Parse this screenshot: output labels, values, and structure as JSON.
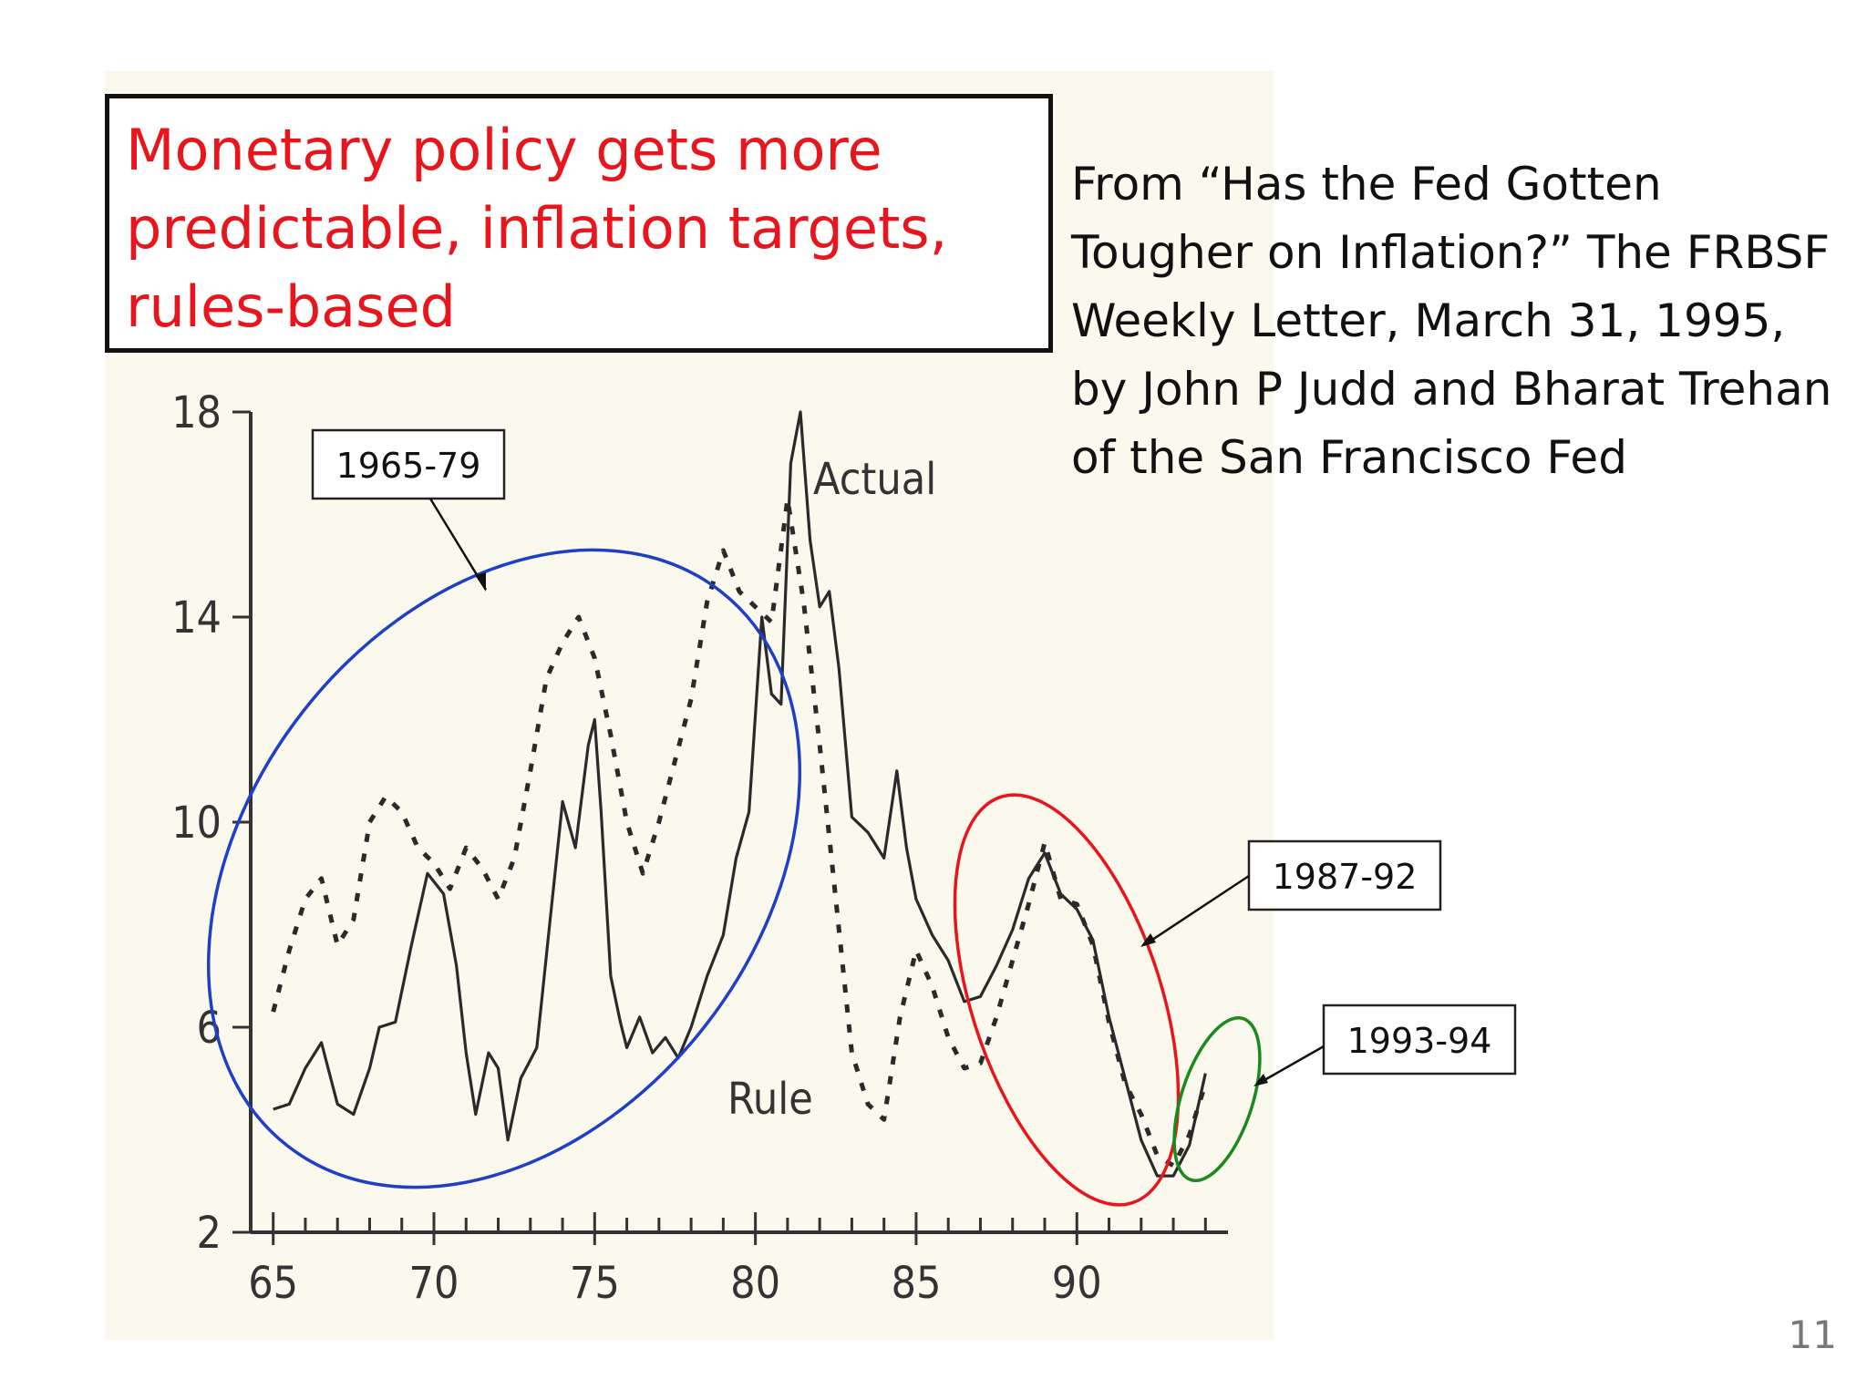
{
  "slide": {
    "title": "Monetary policy gets more predictable, inflation targets, rules-based",
    "source": "From “Has the Fed Gotten Tougher on Inflation?” The FRBSF Weekly  Letter, March 31, 1995, by John P Judd and Bharat Trehan  of the San Francisco Fed",
    "page_number": "11"
  },
  "colors": {
    "title": "#e8161c",
    "ellipse_1965_79": "#1f3fc4",
    "ellipse_1987_92": "#e8161c",
    "ellipse_1993_94": "#1a8a1a",
    "actual_line": "#2a2a2a",
    "rule_line": "#2a2a2a"
  },
  "chart_data": {
    "type": "line",
    "title": "",
    "xlabel": "",
    "ylabel": "",
    "xlim": [
      64.3,
      94.7
    ],
    "ylim": [
      2,
      18
    ],
    "yticks": [
      2,
      6,
      10,
      14,
      18
    ],
    "ytick_labels": [
      "2",
      "6",
      "10",
      "14",
      "18"
    ],
    "xticks": [
      65,
      70,
      75,
      80,
      85,
      90
    ],
    "xtick_labels": [
      "65",
      "70",
      "75",
      "80",
      "85",
      "90"
    ],
    "series_labels": {
      "actual": "Actual",
      "rule": "Rule"
    },
    "series": [
      {
        "name": "Actual",
        "style": "solid",
        "points": [
          [
            65.0,
            4.4
          ],
          [
            65.5,
            4.5
          ],
          [
            66.0,
            5.2
          ],
          [
            66.5,
            5.7
          ],
          [
            67.0,
            4.5
          ],
          [
            67.5,
            4.3
          ],
          [
            68.0,
            5.2
          ],
          [
            68.3,
            6.0
          ],
          [
            68.8,
            6.1
          ],
          [
            69.3,
            7.6
          ],
          [
            69.8,
            9.0
          ],
          [
            70.3,
            8.6
          ],
          [
            70.7,
            7.2
          ],
          [
            71.0,
            5.5
          ],
          [
            71.3,
            4.3
          ],
          [
            71.7,
            5.5
          ],
          [
            72.0,
            5.2
          ],
          [
            72.3,
            3.8
          ],
          [
            72.7,
            5.0
          ],
          [
            73.2,
            5.6
          ],
          [
            73.6,
            8.0
          ],
          [
            74.0,
            10.4
          ],
          [
            74.4,
            9.5
          ],
          [
            74.8,
            11.5
          ],
          [
            75.0,
            12.0
          ],
          [
            75.2,
            10.2
          ],
          [
            75.5,
            7.0
          ],
          [
            75.8,
            6.1
          ],
          [
            76.0,
            5.6
          ],
          [
            76.4,
            6.2
          ],
          [
            76.8,
            5.5
          ],
          [
            77.2,
            5.8
          ],
          [
            77.6,
            5.4
          ],
          [
            78.0,
            6.0
          ],
          [
            78.5,
            7.0
          ],
          [
            79.0,
            7.8
          ],
          [
            79.4,
            9.3
          ],
          [
            79.8,
            10.2
          ],
          [
            80.2,
            14.0
          ],
          [
            80.5,
            12.5
          ],
          [
            80.8,
            12.3
          ],
          [
            81.1,
            17.0
          ],
          [
            81.4,
            18.0
          ],
          [
            81.7,
            15.5
          ],
          [
            82.0,
            14.2
          ],
          [
            82.3,
            14.5
          ],
          [
            82.6,
            13.0
          ],
          [
            83.0,
            10.1
          ],
          [
            83.5,
            9.8
          ],
          [
            84.0,
            9.3
          ],
          [
            84.4,
            11.0
          ],
          [
            84.7,
            9.5
          ],
          [
            85.0,
            8.5
          ],
          [
            85.5,
            7.8
          ],
          [
            86.0,
            7.3
          ],
          [
            86.5,
            6.5
          ],
          [
            87.0,
            6.6
          ],
          [
            87.5,
            7.2
          ],
          [
            88.0,
            7.9
          ],
          [
            88.5,
            8.9
          ],
          [
            89.0,
            9.4
          ],
          [
            89.5,
            8.6
          ],
          [
            90.0,
            8.3
          ],
          [
            90.5,
            7.7
          ],
          [
            91.0,
            6.2
          ],
          [
            91.5,
            5.0
          ],
          [
            92.0,
            3.8
          ],
          [
            92.5,
            3.1
          ],
          [
            93.0,
            3.1
          ],
          [
            93.5,
            3.7
          ],
          [
            94.0,
            5.1
          ]
        ]
      },
      {
        "name": "Rule",
        "style": "dashed",
        "points": [
          [
            65.0,
            6.3
          ],
          [
            65.5,
            7.5
          ],
          [
            66.0,
            8.5
          ],
          [
            66.5,
            8.9
          ],
          [
            67.0,
            7.6
          ],
          [
            67.5,
            8.1
          ],
          [
            68.0,
            10.0
          ],
          [
            68.5,
            10.5
          ],
          [
            69.0,
            10.2
          ],
          [
            69.5,
            9.5
          ],
          [
            70.0,
            9.2
          ],
          [
            70.5,
            8.7
          ],
          [
            71.0,
            9.5
          ],
          [
            71.5,
            9.1
          ],
          [
            72.0,
            8.5
          ],
          [
            72.5,
            9.3
          ],
          [
            73.0,
            11.0
          ],
          [
            73.5,
            12.8
          ],
          [
            74.0,
            13.5
          ],
          [
            74.5,
            14.0
          ],
          [
            75.0,
            13.2
          ],
          [
            75.5,
            11.7
          ],
          [
            76.0,
            10.0
          ],
          [
            76.5,
            9.0
          ],
          [
            77.0,
            10.0
          ],
          [
            77.5,
            11.2
          ],
          [
            78.0,
            12.4
          ],
          [
            78.5,
            14.3
          ],
          [
            79.0,
            15.3
          ],
          [
            79.5,
            14.5
          ],
          [
            80.0,
            14.2
          ],
          [
            80.5,
            13.9
          ],
          [
            81.0,
            16.3
          ],
          [
            81.5,
            14.3
          ],
          [
            82.0,
            11.5
          ],
          [
            82.5,
            8.5
          ],
          [
            83.0,
            5.5
          ],
          [
            83.5,
            4.5
          ],
          [
            84.0,
            4.2
          ],
          [
            84.5,
            6.2
          ],
          [
            85.0,
            7.5
          ],
          [
            85.5,
            6.8
          ],
          [
            86.0,
            5.8
          ],
          [
            86.5,
            5.2
          ],
          [
            87.0,
            5.3
          ],
          [
            87.5,
            6.2
          ],
          [
            88.0,
            7.3
          ],
          [
            88.5,
            8.4
          ],
          [
            89.0,
            9.6
          ],
          [
            89.5,
            8.5
          ],
          [
            90.0,
            8.4
          ],
          [
            90.5,
            7.6
          ],
          [
            91.0,
            6.1
          ],
          [
            91.5,
            4.9
          ],
          [
            92.0,
            4.3
          ],
          [
            92.5,
            3.5
          ],
          [
            93.0,
            3.3
          ],
          [
            93.5,
            3.9
          ],
          [
            94.0,
            4.9
          ]
        ]
      }
    ],
    "annotations": [
      {
        "label": "1965-79",
        "ellipse_color": "blue"
      },
      {
        "label": "1987-92",
        "ellipse_color": "red"
      },
      {
        "label": "1993-94",
        "ellipse_color": "green"
      }
    ]
  }
}
